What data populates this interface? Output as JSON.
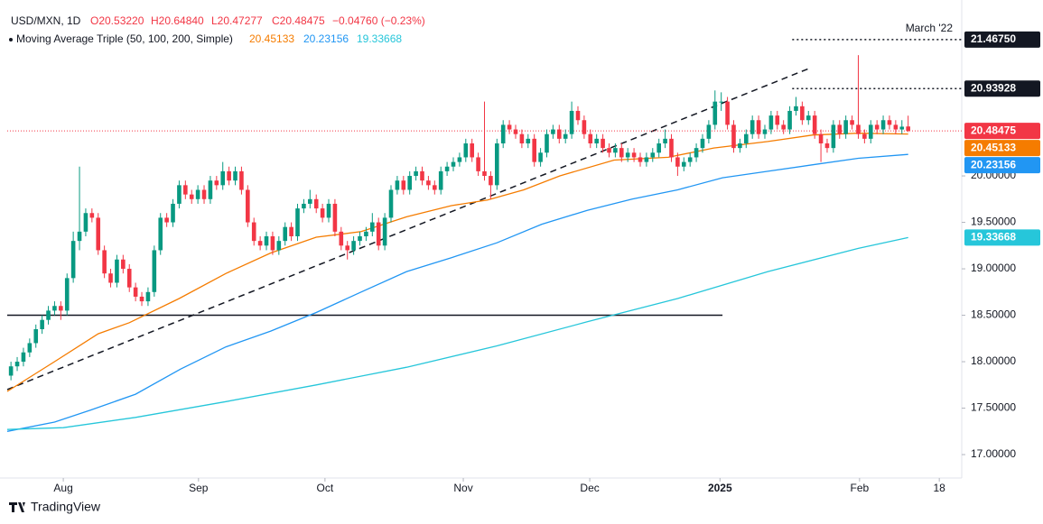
{
  "header": {
    "symbol": "USD/MXN, 1D",
    "open": "O20.53220",
    "high": "H20.64840",
    "low": "L20.47277",
    "close": "C20.48475",
    "change": "−0.04760 (−0.23%)",
    "indicator": "Moving Average Triple (50, 100, 200, Simple)"
  },
  "brand": "TradingView",
  "chart_data": {
    "type": "candlestick",
    "up_color": "#089981",
    "down_color": "#f23645",
    "xlim": [
      -0.6,
      152.6
    ],
    "xticks": [
      {
        "value": 8.4,
        "label": "Aug"
      },
      {
        "value": 30.1,
        "label": "Sep"
      },
      {
        "value": 50.4,
        "label": "Oct"
      },
      {
        "value": 72.6,
        "label": "Nov"
      },
      {
        "value": 92.9,
        "label": "Dec"
      },
      {
        "value": 113.8,
        "label": "2025"
      },
      {
        "value": 136.2,
        "label": "Feb"
      },
      {
        "value": 149,
        "label": "18"
      }
    ],
    "ylim": [
      16.748,
      21.816
    ],
    "yticks": [
      {
        "value": 20,
        "label": "20.00000"
      },
      {
        "value": 19.5,
        "label": "19.50000"
      },
      {
        "value": 19,
        "label": "19.00000"
      },
      {
        "value": 18.5,
        "label": "18.50000"
      },
      {
        "value": 18,
        "label": "18.00000"
      },
      {
        "value": 17.5,
        "label": "17.50000"
      },
      {
        "value": 17,
        "label": "17.00000"
      }
    ],
    "grid": false,
    "ohlc": [
      [
        17.85,
        18.0,
        17.8,
        17.95
      ],
      [
        17.95,
        18.05,
        17.9,
        18.0
      ],
      [
        18.0,
        18.15,
        17.95,
        18.1
      ],
      [
        18.1,
        18.25,
        18.05,
        18.2
      ],
      [
        18.2,
        18.4,
        18.15,
        18.35
      ],
      [
        18.35,
        18.5,
        18.3,
        18.45
      ],
      [
        18.45,
        18.6,
        18.4,
        18.55
      ],
      [
        18.55,
        18.65,
        18.5,
        18.6
      ],
      [
        18.6,
        18.65,
        18.45,
        18.55
      ],
      [
        18.55,
        18.95,
        18.5,
        18.9
      ],
      [
        18.9,
        19.4,
        18.85,
        19.3
      ],
      [
        19.3,
        20.1,
        19.2,
        19.4
      ],
      [
        19.4,
        19.65,
        19.35,
        19.6
      ],
      [
        19.6,
        19.65,
        19.5,
        19.55
      ],
      [
        19.55,
        19.6,
        19.15,
        19.2
      ],
      [
        19.2,
        19.25,
        18.9,
        18.95
      ],
      [
        18.95,
        19.0,
        18.8,
        18.85
      ],
      [
        18.85,
        19.15,
        18.8,
        19.1
      ],
      [
        19.1,
        19.15,
        18.95,
        19.0
      ],
      [
        19.0,
        19.05,
        18.75,
        18.8
      ],
      [
        18.8,
        18.85,
        18.65,
        18.7
      ],
      [
        18.7,
        18.75,
        18.6,
        18.65
      ],
      [
        18.65,
        18.8,
        18.6,
        18.75
      ],
      [
        18.75,
        19.25,
        18.7,
        19.2
      ],
      [
        19.2,
        19.6,
        19.15,
        19.55
      ],
      [
        19.55,
        19.6,
        19.45,
        19.5
      ],
      [
        19.5,
        19.75,
        19.45,
        19.7
      ],
      [
        19.7,
        19.95,
        19.65,
        19.9
      ],
      [
        19.9,
        19.95,
        19.75,
        19.8
      ],
      [
        19.8,
        19.85,
        19.7,
        19.75
      ],
      [
        19.75,
        19.9,
        19.7,
        19.85
      ],
      [
        19.85,
        19.9,
        19.7,
        19.75
      ],
      [
        19.75,
        20.0,
        19.7,
        19.95
      ],
      [
        19.95,
        20.0,
        19.85,
        19.9
      ],
      [
        19.9,
        20.15,
        19.85,
        20.05
      ],
      [
        20.05,
        20.1,
        19.9,
        19.95
      ],
      [
        19.95,
        20.1,
        19.9,
        20.05
      ],
      [
        20.05,
        20.1,
        19.8,
        19.85
      ],
      [
        19.85,
        19.9,
        19.45,
        19.5
      ],
      [
        19.5,
        19.55,
        19.25,
        19.3
      ],
      [
        19.3,
        19.35,
        19.2,
        19.25
      ],
      [
        19.25,
        19.4,
        19.2,
        19.35
      ],
      [
        19.35,
        19.4,
        19.15,
        19.2
      ],
      [
        19.2,
        19.35,
        19.15,
        19.3
      ],
      [
        19.3,
        19.5,
        19.25,
        19.45
      ],
      [
        19.45,
        19.5,
        19.3,
        19.35
      ],
      [
        19.35,
        19.7,
        19.3,
        19.65
      ],
      [
        19.65,
        19.75,
        19.6,
        19.7
      ],
      [
        19.7,
        19.85,
        19.65,
        19.75
      ],
      [
        19.75,
        19.8,
        19.6,
        19.65
      ],
      [
        19.65,
        19.7,
        19.5,
        19.55
      ],
      [
        19.55,
        19.75,
        19.5,
        19.7
      ],
      [
        19.7,
        19.75,
        19.35,
        19.4
      ],
      [
        19.4,
        19.45,
        19.2,
        19.25
      ],
      [
        19.25,
        19.3,
        19.1,
        19.2
      ],
      [
        19.2,
        19.35,
        19.15,
        19.3
      ],
      [
        19.3,
        19.4,
        19.25,
        19.35
      ],
      [
        19.35,
        19.45,
        19.3,
        19.4
      ],
      [
        19.4,
        19.6,
        19.35,
        19.5
      ],
      [
        19.5,
        19.55,
        19.2,
        19.25
      ],
      [
        19.25,
        19.6,
        19.2,
        19.55
      ],
      [
        19.55,
        19.9,
        19.5,
        19.85
      ],
      [
        19.85,
        20.0,
        19.8,
        19.95
      ],
      [
        19.95,
        20.0,
        19.8,
        19.85
      ],
      [
        19.85,
        20.05,
        19.8,
        20.0
      ],
      [
        20.0,
        20.1,
        19.95,
        20.05
      ],
      [
        20.05,
        20.1,
        19.9,
        19.95
      ],
      [
        19.95,
        20.0,
        19.85,
        19.9
      ],
      [
        19.9,
        19.95,
        19.8,
        19.85
      ],
      [
        19.85,
        20.1,
        19.8,
        20.05
      ],
      [
        20.05,
        20.15,
        20.0,
        20.1
      ],
      [
        20.1,
        20.2,
        20.05,
        20.15
      ],
      [
        20.15,
        20.25,
        20.1,
        20.2
      ],
      [
        20.2,
        20.4,
        20.15,
        20.35
      ],
      [
        20.35,
        20.4,
        20.15,
        20.2
      ],
      [
        20.2,
        20.25,
        20.0,
        20.05
      ],
      [
        20.05,
        20.8,
        19.95,
        20.0
      ],
      [
        20.0,
        20.05,
        19.75,
        19.9
      ],
      [
        19.9,
        20.4,
        19.85,
        20.35
      ],
      [
        20.35,
        20.6,
        20.3,
        20.55
      ],
      [
        20.55,
        20.6,
        20.45,
        20.5
      ],
      [
        20.5,
        20.55,
        20.4,
        20.45
      ],
      [
        20.45,
        20.5,
        20.3,
        20.35
      ],
      [
        20.35,
        20.45,
        20.3,
        20.4
      ],
      [
        20.4,
        20.45,
        20.1,
        20.15
      ],
      [
        20.15,
        20.3,
        20.1,
        20.25
      ],
      [
        20.25,
        20.5,
        20.2,
        20.45
      ],
      [
        20.45,
        20.55,
        20.4,
        20.5
      ],
      [
        20.5,
        20.55,
        20.35,
        20.4
      ],
      [
        20.4,
        20.5,
        20.35,
        20.45
      ],
      [
        20.45,
        20.8,
        20.4,
        20.7
      ],
      [
        20.7,
        20.75,
        20.55,
        20.6
      ],
      [
        20.6,
        20.65,
        20.4,
        20.45
      ],
      [
        20.45,
        20.5,
        20.3,
        20.35
      ],
      [
        20.35,
        20.45,
        20.3,
        20.4
      ],
      [
        20.4,
        20.45,
        20.25,
        20.3
      ],
      [
        20.3,
        20.35,
        20.2,
        20.25
      ],
      [
        20.25,
        20.35,
        20.2,
        20.3
      ],
      [
        20.3,
        20.35,
        20.15,
        20.2
      ],
      [
        20.2,
        20.3,
        20.15,
        20.25
      ],
      [
        20.25,
        20.3,
        20.15,
        20.2
      ],
      [
        20.2,
        20.25,
        20.1,
        20.15
      ],
      [
        20.15,
        20.25,
        20.1,
        20.2
      ],
      [
        20.2,
        20.3,
        20.15,
        20.25
      ],
      [
        20.25,
        20.4,
        20.2,
        20.35
      ],
      [
        20.35,
        20.5,
        20.3,
        20.4
      ],
      [
        20.4,
        20.45,
        20.15,
        20.2
      ],
      [
        20.2,
        20.25,
        20.0,
        20.1
      ],
      [
        20.1,
        20.2,
        20.05,
        20.15
      ],
      [
        20.15,
        20.25,
        20.1,
        20.2
      ],
      [
        20.2,
        20.35,
        20.15,
        20.3
      ],
      [
        20.3,
        20.45,
        20.25,
        20.4
      ],
      [
        20.4,
        20.6,
        20.35,
        20.55
      ],
      [
        20.55,
        20.92,
        20.5,
        20.8
      ],
      [
        20.8,
        20.9,
        20.7,
        20.8
      ],
      [
        20.8,
        20.85,
        20.5,
        20.55
      ],
      [
        20.55,
        20.6,
        20.25,
        20.3
      ],
      [
        20.3,
        20.4,
        20.25,
        20.35
      ],
      [
        20.35,
        20.5,
        20.3,
        20.45
      ],
      [
        20.45,
        20.65,
        20.4,
        20.6
      ],
      [
        20.6,
        20.65,
        20.4,
        20.45
      ],
      [
        20.45,
        20.55,
        20.4,
        20.5
      ],
      [
        20.5,
        20.7,
        20.45,
        20.65
      ],
      [
        20.65,
        20.7,
        20.5,
        20.55
      ],
      [
        20.55,
        20.6,
        20.45,
        20.5
      ],
      [
        20.5,
        20.75,
        20.45,
        20.7
      ],
      [
        20.7,
        20.85,
        20.65,
        20.75
      ],
      [
        20.75,
        20.8,
        20.55,
        20.6
      ],
      [
        20.6,
        20.7,
        20.55,
        20.65
      ],
      [
        20.65,
        20.7,
        20.4,
        20.45
      ],
      [
        20.45,
        20.5,
        20.15,
        20.35
      ],
      [
        20.35,
        20.4,
        20.25,
        20.3
      ],
      [
        20.3,
        20.6,
        20.25,
        20.55
      ],
      [
        20.55,
        20.6,
        20.4,
        20.45
      ],
      [
        20.45,
        20.65,
        20.4,
        20.6
      ],
      [
        20.6,
        20.65,
        20.5,
        20.55
      ],
      [
        20.55,
        21.3,
        20.4,
        20.45
      ],
      [
        20.45,
        20.5,
        20.35,
        20.4
      ],
      [
        20.4,
        20.6,
        20.35,
        20.55
      ],
      [
        20.55,
        20.6,
        20.45,
        20.5
      ],
      [
        20.5,
        20.65,
        20.45,
        20.6
      ],
      [
        20.6,
        20.65,
        20.5,
        20.55
      ],
      [
        20.55,
        20.6,
        20.45,
        20.5
      ],
      [
        20.5,
        20.6,
        20.45,
        20.53
      ],
      [
        20.5322,
        20.6484,
        20.47277,
        20.48475
      ]
    ],
    "series": [
      {
        "color": "#f57c00",
        "last_label": "20.45133",
        "x": [
          -0.6,
          7,
          14,
          19,
          27,
          34.5,
          41.7,
          49,
          56.2,
          63.5,
          70.7,
          76.5,
          82.3,
          88.1,
          96.8,
          105.5,
          112.8,
          121.5,
          128.7,
          136,
          144
        ],
        "values": [
          17.68,
          18.0,
          18.3,
          18.42,
          18.68,
          18.95,
          19.17,
          19.34,
          19.4,
          19.56,
          19.68,
          19.74,
          19.85,
          20.0,
          20.17,
          20.2,
          20.3,
          20.37,
          20.44,
          20.46,
          20.45133
        ]
      },
      {
        "color": "#2196f3",
        "last_label": "20.23156",
        "x": [
          -0.6,
          7,
          12.8,
          20,
          27.2,
          34.5,
          41.7,
          49,
          56.2,
          63.5,
          70.7,
          78,
          85.2,
          92.5,
          99.7,
          107,
          114.2,
          121.5,
          128.7,
          136,
          144
        ],
        "values": [
          17.25,
          17.35,
          17.48,
          17.65,
          17.92,
          18.16,
          18.33,
          18.53,
          18.75,
          18.97,
          19.12,
          19.28,
          19.48,
          19.63,
          19.75,
          19.85,
          19.98,
          20.05,
          20.12,
          20.19,
          20.23156
        ]
      },
      {
        "color": "#26c6da",
        "last_label": "19.33668",
        "x": [
          -0.6,
          8.4,
          20,
          34.5,
          49,
          63.5,
          78,
          92.5,
          107,
          121.5,
          136,
          144
        ],
        "values": [
          17.27,
          17.29,
          17.4,
          17.57,
          17.75,
          17.94,
          18.17,
          18.43,
          18.68,
          18.97,
          19.22,
          19.33668
        ]
      }
    ],
    "hline": {
      "x": [
        -0.6,
        114.2
      ],
      "value": 18.5
    },
    "trendline": {
      "x": [
        -0.6,
        128.4
      ],
      "values": [
        17.7,
        21.165
      ]
    },
    "levels": [
      {
        "value": 21.4675,
        "label": "21.46750",
        "x0": 125.4
      },
      {
        "value": 20.93928,
        "label": "20.93928",
        "x0": 125.4
      }
    ],
    "annotation": "March '22",
    "last_price": {
      "value": 20.48475,
      "label": "20.48475",
      "color": "#f23645"
    }
  }
}
